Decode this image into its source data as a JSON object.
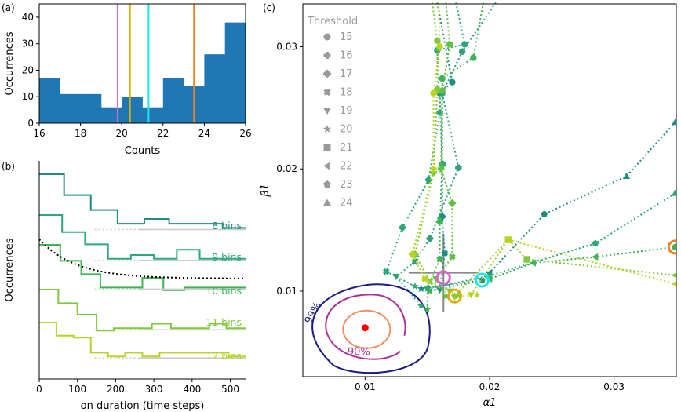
{
  "figure": {
    "panel_a_label": "(a)",
    "panel_b_label": "(b)",
    "panel_c_label": "(c)"
  },
  "colors": {
    "bar": "#1f77b4",
    "marker_pink": "#dd66cc",
    "marker_yellow": "#d9b000",
    "marker_cyan": "#18e6ee",
    "marker_orange": "#f08020",
    "contour_99": "#1a1a80",
    "contour_95": "#b0309a",
    "contour_90": "#f09060",
    "center_dot": "#ff0000",
    "errorbar": "#888888"
  },
  "chart_data": [
    {
      "id": "a",
      "type": "bar",
      "xlabel": "Counts",
      "ylabel": "Occurrences",
      "xlim": [
        16,
        26
      ],
      "ylim": [
        0,
        45
      ],
      "xticks": [
        "16",
        "18",
        "20",
        "22",
        "24",
        "26"
      ],
      "yticks": [
        "0",
        "10",
        "20",
        "30",
        "40"
      ],
      "bins": [
        {
          "start": 16,
          "end": 17,
          "value": 17
        },
        {
          "start": 17,
          "end": 18,
          "value": 11
        },
        {
          "start": 18,
          "end": 19,
          "value": 11
        },
        {
          "start": 19,
          "end": 20,
          "value": 6
        },
        {
          "start": 20,
          "end": 21,
          "value": 10
        },
        {
          "start": 21,
          "end": 22,
          "value": 6
        },
        {
          "start": 22,
          "end": 23,
          "value": 17
        },
        {
          "start": 23,
          "end": 24,
          "value": 14
        },
        {
          "start": 24,
          "end": 25,
          "value": 26
        },
        {
          "start": 25,
          "end": 26,
          "value": 38
        }
      ],
      "vlines": [
        {
          "x": 19.8,
          "color": "#dd66cc"
        },
        {
          "x": 20.4,
          "color": "#d9b000"
        },
        {
          "x": 21.3,
          "color": "#18e6ee"
        },
        {
          "x": 23.5,
          "color": "#f08020"
        }
      ]
    },
    {
      "id": "b",
      "type": "line",
      "xlabel": "on duration (time steps)",
      "ylabel": "Occurrences",
      "xlim": [
        0,
        540
      ],
      "xticks": [
        "0",
        "100",
        "200",
        "300",
        "400",
        "500"
      ],
      "series": [
        {
          "name": "8 bins",
          "color": "#1f8e82",
          "x": [
            0,
            65,
            135,
            205,
            275,
            340,
            410,
            480,
            540
          ],
          "y": [
            0.0,
            0.35,
            0.6,
            0.83,
            0.75,
            0.83,
            0.83,
            0.9,
            0.9
          ]
        },
        {
          "name": "9 bins",
          "color": "#2aa87a",
          "x": [
            0,
            60,
            120,
            180,
            240,
            300,
            360,
            420,
            480,
            540
          ],
          "y": [
            0.0,
            0.32,
            0.55,
            0.82,
            0.75,
            0.82,
            0.65,
            0.82,
            0.82,
            0.82
          ]
        },
        {
          "name": "10 bins",
          "color": "#3cb454",
          "x": [
            0,
            55,
            110,
            160,
            215,
            270,
            325,
            380,
            430,
            485,
            540
          ],
          "y": [
            0.0,
            0.3,
            0.55,
            0.8,
            0.8,
            0.62,
            0.85,
            0.8,
            0.8,
            0.8,
            0.8
          ]
        },
        {
          "name": "11 bins",
          "color": "#80c83c",
          "x": [
            0,
            50,
            100,
            150,
            195,
            245,
            295,
            345,
            395,
            445,
            490,
            540
          ],
          "y": [
            0.0,
            0.3,
            0.55,
            0.9,
            0.85,
            0.85,
            0.75,
            0.85,
            0.85,
            0.75,
            0.85,
            0.85
          ]
        },
        {
          "name": "12 bins",
          "color": "#b8d420",
          "x": [
            0,
            45,
            90,
            135,
            180,
            225,
            270,
            315,
            360,
            405,
            450,
            495,
            540
          ],
          "y": [
            0.0,
            0.35,
            0.4,
            0.8,
            0.9,
            0.8,
            0.9,
            0.8,
            0.8,
            0.8,
            0.8,
            0.9,
            0.9
          ]
        }
      ]
    },
    {
      "id": "c",
      "type": "scatter",
      "xlabel": "α1",
      "ylabel": "β1",
      "xlim": [
        0.005,
        0.035
      ],
      "ylim": [
        0.003,
        0.0335
      ],
      "xticks": [
        0.01,
        0.02,
        0.03
      ],
      "yticks": [
        0.01,
        0.02,
        0.03
      ],
      "legend_title": "Threshold",
      "legend": [
        {
          "label": "15",
          "marker": "circle"
        },
        {
          "label": "16",
          "marker": "plus"
        },
        {
          "label": "17",
          "marker": "diamond"
        },
        {
          "label": "18",
          "marker": "x"
        },
        {
          "label": "19",
          "marker": "tri_down"
        },
        {
          "label": "20",
          "marker": "star"
        },
        {
          "label": "21",
          "marker": "square"
        },
        {
          "label": "22",
          "marker": "tri_left"
        },
        {
          "label": "23",
          "marker": "pentagon"
        },
        {
          "label": "24",
          "marker": "tri_up"
        }
      ],
      "contour_labels": [
        "99%",
        "90%"
      ],
      "center": {
        "x": 0.01,
        "y": 0.007
      },
      "errorbar": {
        "x": 0.0163,
        "y": 0.0115,
        "xerr": 0.0028,
        "yerr": 0.0032
      },
      "circled_points": [
        {
          "x": 0.0163,
          "y": 0.0111,
          "color": "#dd66cc"
        },
        {
          "x": 0.0172,
          "y": 0.0096,
          "color": "#d9b000"
        },
        {
          "x": 0.0194,
          "y": 0.0109,
          "color": "#18e6ee"
        },
        {
          "x": 0.0349,
          "y": 0.0136,
          "color": "#f08020"
        }
      ],
      "series": [
        {
          "color": "#1f8e82",
          "points": [
            [
              0.0158,
              0.0336
            ],
            [
              0.017,
              0.0271
            ],
            [
              0.016,
              0.0262
            ],
            [
              0.0162,
              0.0204
            ],
            [
              0.0162,
              0.0161
            ],
            [
              0.0164,
              0.0131
            ],
            [
              0.016,
              0.0101
            ],
            [
              0.0145,
              0.0102
            ]
          ],
          "markers": [
            "circle",
            "circle",
            "circle",
            "plus",
            "diamond",
            "x",
            "tri_down",
            "star"
          ]
        },
        {
          "color": "#2aa87a",
          "points": [
            [
              0.0173,
              0.0336
            ],
            [
              0.018,
              0.0302
            ],
            [
              0.0158,
              0.0297
            ],
            [
              0.016,
              0.0246
            ],
            [
              0.0151,
              0.0191
            ],
            [
              0.013,
              0.0152
            ],
            [
              0.0117,
              0.0116
            ],
            [
              0.014,
              0.0104
            ]
          ],
          "markers": [
            "circle",
            "circle",
            "circle",
            "plus",
            "diamond",
            "diamond",
            "x",
            "star"
          ]
        },
        {
          "color": "#30a07a",
          "points": [
            [
              0.0205,
              0.0336
            ],
            [
              0.0178,
              0.0296
            ],
            [
              0.0162,
              0.0262
            ],
            [
              0.0175,
              0.0201
            ],
            [
              0.0152,
              0.0143
            ],
            [
              0.014,
              0.0124
            ],
            [
              0.0125,
              0.0112
            ],
            [
              0.0145,
              0.0088
            ]
          ],
          "markers": [
            "circle",
            "circle",
            "circle",
            "plus",
            "diamond",
            "x",
            "tri_down",
            "star"
          ]
        },
        {
          "color": "#3cb454",
          "points": [
            [
              0.0195,
              0.0336
            ],
            [
              0.0187,
              0.0291
            ],
            [
              0.0162,
              0.0274
            ],
            [
              0.0162,
              0.0203
            ],
            [
              0.016,
              0.0157
            ],
            [
              0.016,
              0.0126
            ],
            [
              0.015,
              0.0102
            ],
            [
              0.015,
              0.0085
            ]
          ],
          "markers": [
            "circle",
            "circle",
            "circle",
            "plus",
            "diamond",
            "x",
            "tri_down",
            "star"
          ]
        },
        {
          "color": "#60bf40",
          "points": [
            [
              0.0165,
              0.0336
            ],
            [
              0.0168,
              0.0302
            ],
            [
              0.0162,
              0.0264
            ],
            [
              0.0161,
              0.02
            ],
            [
              0.017,
              0.0172
            ],
            [
              0.017,
              0.0128
            ],
            [
              0.0157,
              0.011
            ],
            [
              0.0165,
              0.0096
            ]
          ],
          "markers": [
            "circle",
            "circle",
            "circle",
            "plus",
            "diamond",
            "x",
            "tri_down",
            "star"
          ]
        },
        {
          "color": "#80c83c",
          "points": [
            [
              0.0154,
              0.0336
            ],
            [
              0.0158,
              0.0305
            ],
            [
              0.0158,
              0.0265
            ],
            [
              0.0155,
              0.0197
            ],
            [
              0.014,
              0.013
            ],
            [
              0.0152,
              0.0108
            ],
            [
              0.0168,
              0.01
            ],
            [
              0.0175,
              0.0096
            ]
          ],
          "markers": [
            "circle",
            "circle",
            "circle",
            "plus",
            "diamond",
            "x",
            "tri_down",
            "star"
          ]
        },
        {
          "color": "#b8d420",
          "points": [
            [
              0.0159,
              0.0336
            ],
            [
              0.016,
              0.03
            ],
            [
              0.0155,
              0.0262
            ],
            [
              0.0155,
              0.02
            ],
            [
              0.0138,
              0.013
            ],
            [
              0.0148,
              0.011
            ],
            [
              0.0172,
              0.0095
            ],
            [
              0.019,
              0.0097
            ]
          ],
          "markers": [
            "circle",
            "circle",
            "circle",
            "plus",
            "diamond",
            "x",
            "tri_down",
            "star"
          ]
        },
        {
          "color": "#1f8e82",
          "points": [
            [
              0.0145,
              0.0102
            ],
            [
              0.0194,
              0.0109
            ],
            [
              0.02,
              0.0115
            ],
            [
              0.0244,
              0.0163
            ],
            [
              0.031,
              0.0194
            ],
            [
              0.0349,
              0.0238
            ]
          ],
          "markers": [
            "star",
            "pentagon",
            "tri_left",
            "pentagon",
            "tri_up",
            "tri_up"
          ]
        },
        {
          "color": "#2aa87a",
          "points": [
            [
              0.015,
              0.0102
            ],
            [
              0.0198,
              0.0112
            ],
            [
              0.0285,
              0.0139
            ],
            [
              0.0349,
              0.018
            ]
          ],
          "markers": [
            "star",
            "tri_left",
            "pentagon",
            "tri_up"
          ]
        },
        {
          "color": "#3cb454",
          "points": [
            [
              0.0152,
              0.01
            ],
            [
              0.02,
              0.011
            ],
            [
              0.0235,
              0.0123
            ],
            [
              0.0285,
              0.0128
            ],
            [
              0.0349,
              0.0136
            ]
          ],
          "markers": [
            "star",
            "tri_left",
            "tri_left",
            "tri_left",
            "pentagon"
          ]
        },
        {
          "color": "#80c83c",
          "points": [
            [
              0.0172,
              0.0096
            ],
            [
              0.0215,
              0.0142
            ],
            [
              0.023,
              0.0126
            ],
            [
              0.0349,
              0.0113
            ]
          ],
          "markers": [
            "star",
            "square",
            "square",
            "tri_left"
          ]
        },
        {
          "color": "#b8d420",
          "points": [
            [
              0.0185,
              0.0097
            ],
            [
              0.0215,
              0.0142
            ],
            [
              0.0349,
              0.0106
            ]
          ],
          "markers": [
            "tri_down",
            "square",
            "tri_left"
          ]
        }
      ]
    }
  ]
}
